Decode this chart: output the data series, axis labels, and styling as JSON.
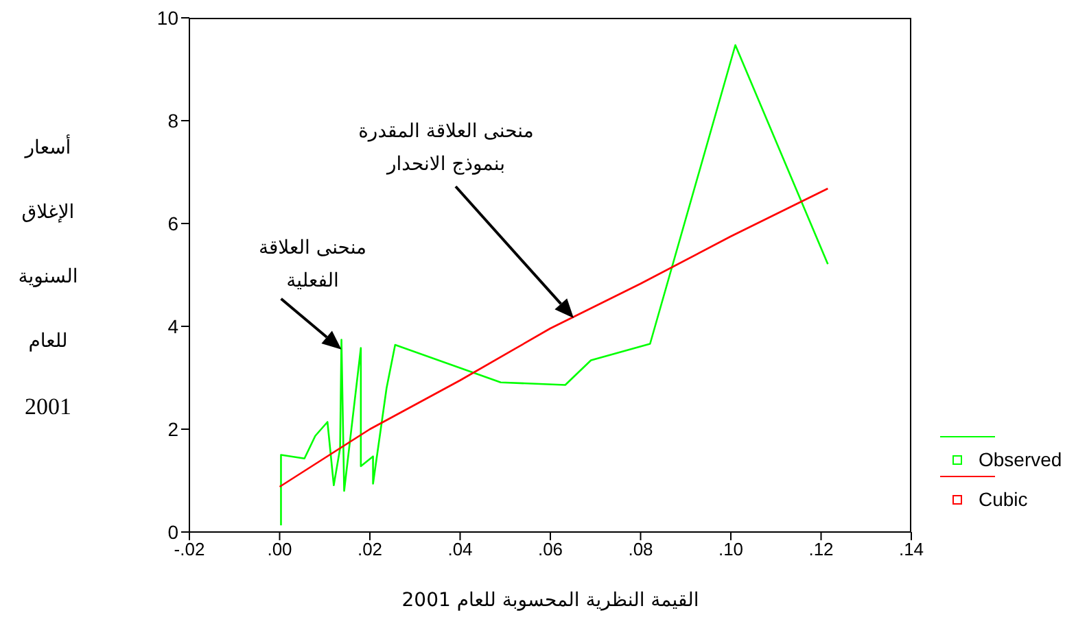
{
  "chart_data": {
    "type": "line",
    "xlabel": "القيمة النظرية المحسوبة للعام 2001",
    "ylabel": "أسعار الإغلاق السنوية للعام 2001",
    "xlim": [
      -0.02,
      0.14
    ],
    "xticks": [
      {
        "value": -0.02,
        "label": "-.02"
      },
      {
        "value": 0,
        "label": ".00"
      },
      {
        "value": 0.02,
        "label": ".02"
      },
      {
        "value": 0.04,
        "label": ".04"
      },
      {
        "value": 0.06,
        "label": ".06"
      },
      {
        "value": 0.08,
        "label": ".08"
      },
      {
        "value": 0.1,
        "label": ".10"
      },
      {
        "value": 0.12,
        "label": ".12"
      },
      {
        "value": 0.14,
        "label": ".14"
      }
    ],
    "ylim": [
      0,
      10
    ],
    "yticks": [
      0,
      2,
      4,
      6,
      8,
      10
    ],
    "grid": false,
    "legend": "bottom right",
    "marker": "none",
    "line_style": "solid",
    "series": [
      {
        "name": "Observed",
        "color": "#00ff00",
        "x": [
          0.0003,
          0.0003,
          0.0055,
          0.0079,
          0.0106,
          0.012,
          0.0134,
          0.0137,
          0.0143,
          0.018,
          0.018,
          0.0207,
          0.0207,
          0.0237,
          0.0256,
          0.049,
          0.0633,
          0.069,
          0.0821,
          0.101,
          0.1215
        ],
        "values": [
          0.13,
          1.5,
          1.43,
          1.87,
          2.14,
          0.91,
          1.63,
          3.74,
          0.8,
          3.58,
          1.28,
          1.47,
          0.94,
          2.8,
          3.64,
          2.91,
          2.86,
          3.34,
          3.66,
          9.47,
          5.21
        ]
      },
      {
        "name": "Cubic",
        "color": "#ff0000",
        "x": [
          0,
          0.02,
          0.04,
          0.06,
          0.08,
          0.1,
          0.1215
        ],
        "values": [
          0.88,
          2.0,
          2.95,
          3.96,
          4.83,
          5.75,
          6.68
        ]
      }
    ],
    "annotations": [
      {
        "text": "منحنى العلاقة\nالفعلية",
        "x": 0.0137,
        "y": 3.55
      },
      "منحنى العلاقة المقدرة\nبنموذج الانحدار"
    ]
  }
}
